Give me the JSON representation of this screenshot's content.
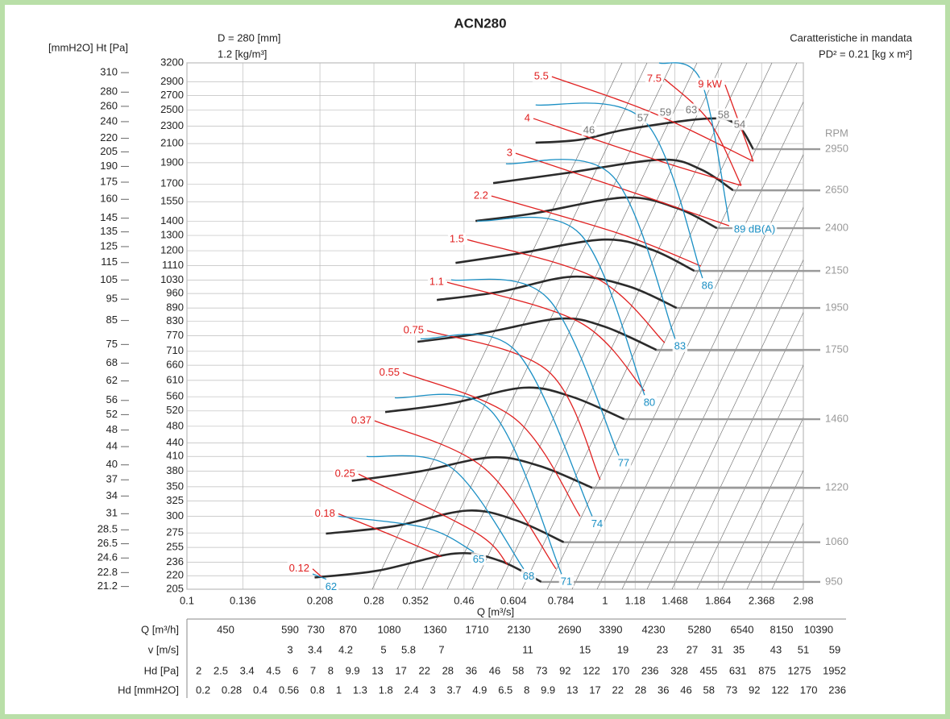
{
  "chart_data": {
    "type": "line",
    "title": "ACN280",
    "diameter": "D = 280 [mm]",
    "density": "1.2 [kg/m³]",
    "subtitle": "Caratteristiche in mandata",
    "inertia": "PD² = 0.21 [kg x m²]",
    "y_label": "[mmH2O] Ht [Pa]",
    "x_label": "Q [m³/s]",
    "rpm_label": "RPM",
    "xscale": "log",
    "yscale": "log",
    "grid": true,
    "xlim": [
      0.1,
      2.98
    ],
    "xticks": [
      0.1,
      0.136,
      0.208,
      0.28,
      0.352,
      0.46,
      0.604,
      0.784,
      1,
      1.18,
      1.468,
      1.864,
      2.368,
      2.98
    ],
    "ylim": [
      205,
      3200
    ],
    "yticks": [
      3200,
      2900,
      2700,
      2500,
      2300,
      2100,
      1900,
      1700,
      1550,
      1400,
      1300,
      1200,
      1110,
      1030,
      960,
      890,
      830,
      770,
      710,
      660,
      610,
      560,
      520,
      480,
      440,
      410,
      380,
      350,
      325,
      300,
      275,
      255,
      236,
      220,
      205
    ],
    "y2lim": [
      20.9,
      326.2
    ],
    "y2ticks": [
      310,
      280,
      260,
      240,
      220,
      205,
      190,
      175,
      160,
      145,
      135,
      125,
      115,
      105,
      95,
      85,
      75,
      68,
      62,
      56,
      52,
      48,
      44,
      40,
      37,
      34,
      31,
      28.5,
      26.5,
      24.6,
      22.8,
      21.2
    ],
    "rpm_curves": {
      "color": "#2b2b2b",
      "curves": [
        {
          "rpm": 2950,
          "x": [
            0.682,
            0.872,
            1.137,
            1.773,
            2.07,
            2.262
          ],
          "values": [
            2109,
            2143,
            2265,
            2393,
            2312,
            2039
          ]
        },
        {
          "rpm": 2650,
          "x": [
            0.54,
            0.797,
            1.358,
            1.695,
            2.025
          ],
          "values": [
            1708,
            1797,
            1930,
            1835,
            1645
          ]
        },
        {
          "rpm": 2400,
          "x": [
            0.49,
            0.668,
            1.112,
            1.484,
            1.853
          ],
          "values": [
            1402,
            1456,
            1584,
            1500,
            1350
          ]
        },
        {
          "rpm": 2150,
          "x": [
            0.439,
            0.611,
            0.995,
            1.299,
            1.636
          ],
          "values": [
            1126,
            1180,
            1272,
            1205,
            1080
          ]
        },
        {
          "rpm": 1950,
          "x": [
            0.396,
            0.559,
            0.834,
            1.137,
            1.484
          ],
          "values": [
            928,
            968,
            1048,
            997,
            890
          ]
        },
        {
          "rpm": 1750,
          "x": [
            0.356,
            0.512,
            0.78,
            0.995,
            1.328
          ],
          "values": [
            746,
            781,
            842,
            808,
            715
          ]
        },
        {
          "rpm": 1460,
          "x": [
            0.298,
            0.429,
            0.639,
            0.833,
            1.112
          ],
          "values": [
            517,
            541,
            587,
            560,
            498
          ]
        },
        {
          "rpm": 1220,
          "x": [
            0.248,
            0.359,
            0.535,
            0.698,
            0.932
          ],
          "values": [
            361,
            379,
            408,
            390,
            348
          ]
        },
        {
          "rpm": 1060,
          "x": [
            0.215,
            0.314,
            0.468,
            0.611,
            0.797
          ],
          "values": [
            274,
            285,
            309,
            294,
            262
          ]
        },
        {
          "rpm": 950,
          "x": [
            0.202,
            0.287,
            0.438,
            0.559,
            0.704
          ],
          "values": [
            218,
            226,
            247,
            238,
            213
          ]
        }
      ]
    },
    "power_curves": {
      "color": "#e02020",
      "curves": [
        {
          "kw": 0.12,
          "x": [
            0.1998,
            0.2107
          ],
          "values": [
            228,
            218
          ]
        },
        {
          "kw": 0.18,
          "x": [
            0.2302,
            0.3142,
            0.4063
          ],
          "values": [
            304,
            270,
            243
          ]
        },
        {
          "kw": 0.25,
          "x": [
            0.2572,
            0.4895,
            0.5846
          ],
          "values": [
            374,
            276,
            233
          ]
        },
        {
          "kw": 0.37,
          "x": [
            0.2812,
            0.5117,
            0.7631
          ],
          "values": [
            494,
            387,
            228
          ]
        },
        {
          "kw": 0.55,
          "x": [
            0.3284,
            0.6111,
            0.8715
          ],
          "values": [
            635,
            498,
            300
          ]
        },
        {
          "kw": 0.75,
          "x": [
            0.3752,
            0.7297,
            0.9737
          ],
          "values": [
            791,
            641,
            363
          ]
        },
        {
          "kw": 1.1,
          "x": [
            0.4191,
            0.8715,
            1.243
          ],
          "values": [
            1018,
            825,
            577
          ]
        },
        {
          "kw": 1.5,
          "x": [
            0.4684,
            0.9524,
            1.389
          ],
          "values": [
            1272,
            1040,
            742
          ]
        },
        {
          "kw": 2.2,
          "x": [
            0.5349,
            1.088,
            1.6954
          ],
          "values": [
            1597,
            1310,
            1108
          ]
        },
        {
          "kw": 3,
          "x": [
            0.6111,
            1.189,
            1.98
          ],
          "values": [
            1996,
            1617,
            1367
          ]
        },
        {
          "kw": 4,
          "x": [
            0.6738,
            1.358,
            2.117
          ],
          "values": [
            2393,
            1914,
            1687
          ]
        },
        {
          "kw": 5.5,
          "x": [
            0.746,
            1.2993,
            2.262
          ],
          "values": [
            2978,
            2465,
            1914
          ]
        },
        {
          "kw": 7.5,
          "x": [
            1.389,
            1.7725,
            2.117
          ],
          "values": [
            2940,
            2363,
            1687
          ]
        },
        {
          "kw": 9,
          "kw_label": "9 kW",
          "x": [
            1.937,
            2.262
          ],
          "values": [
            2854,
            1914
          ]
        }
      ]
    },
    "noise_curves": {
      "color": "#1a8fc4",
      "curves": [
        {
          "db": 62,
          "x": [
            0.1998,
            0.2154
          ],
          "values": [
            222,
            216
          ]
        },
        {
          "db": 65,
          "x": [
            0.2302,
            0.3752,
            0.4852
          ],
          "values": [
            300,
            282,
            249
          ]
        },
        {
          "db": 68,
          "x": [
            0.269,
            0.4285,
            0.6389
          ],
          "values": [
            410,
            387,
            228
          ]
        },
        {
          "db": 71,
          "x": [
            0.3142,
            0.5349,
            0.787
          ],
          "values": [
            557,
            519,
            222
          ]
        },
        {
          "db": 74,
          "x": [
            0.362,
            0.6111,
            0.9315
          ],
          "values": [
            758,
            712,
            300
          ]
        },
        {
          "db": 77,
          "x": [
            0.4285,
            0.7297,
            1.0784
          ],
          "values": [
            1031,
            936,
            412
          ]
        },
        {
          "db": 80,
          "x": [
            0.494,
            0.8715,
            1.243
          ],
          "values": [
            1402,
            1310,
            565
          ]
        },
        {
          "db": 83,
          "x": [
            0.5794,
            1.0406,
            1.4708
          ],
          "values": [
            1890,
            1775,
            758
          ]
        },
        {
          "db": 86,
          "x": [
            0.6823,
            1.243,
            1.7104
          ],
          "values": [
            2570,
            2363,
            1040
          ]
        },
        {
          "db": 89,
          "db_label": "89 dB(A)",
          "x": [
            1.3464,
            1.6954,
            1.98
          ],
          "values": [
            3200,
            2916,
            1396
          ]
        }
      ]
    },
    "efficiency_labels": [
      46,
      57,
      59,
      63,
      58,
      54
    ]
  },
  "table": {
    "rows": [
      {
        "label": "Q [m³/h]",
        "values": [
          450,
          590,
          730,
          870,
          1080,
          1360,
          1710,
          2130,
          2690,
          3390,
          4230,
          5280,
          6540,
          8150,
          10390
        ]
      },
      {
        "label": "v [m/s]",
        "values": [
          3,
          3.4,
          4.2,
          5,
          5.8,
          7,
          11,
          15,
          19,
          23,
          27,
          31,
          35,
          43,
          51,
          59
        ]
      },
      {
        "label": "Hd [Pa]",
        "values": [
          2,
          2.5,
          3.4,
          4.5,
          6,
          7,
          8,
          9.9,
          13,
          17,
          22,
          28,
          36,
          46,
          58,
          73,
          92,
          122,
          170,
          236,
          328,
          455,
          631,
          875,
          1275,
          1952
        ]
      },
      {
        "label": "Hd [mmH2O]",
        "values": [
          0.2,
          0.28,
          0.4,
          0.56,
          0.8,
          1,
          1.3,
          1.8,
          2.4,
          3,
          3.7,
          4.9,
          6.5,
          8,
          9.9,
          13,
          17,
          22,
          28,
          36,
          46,
          58,
          73,
          92,
          122,
          170,
          236
        ]
      }
    ]
  }
}
